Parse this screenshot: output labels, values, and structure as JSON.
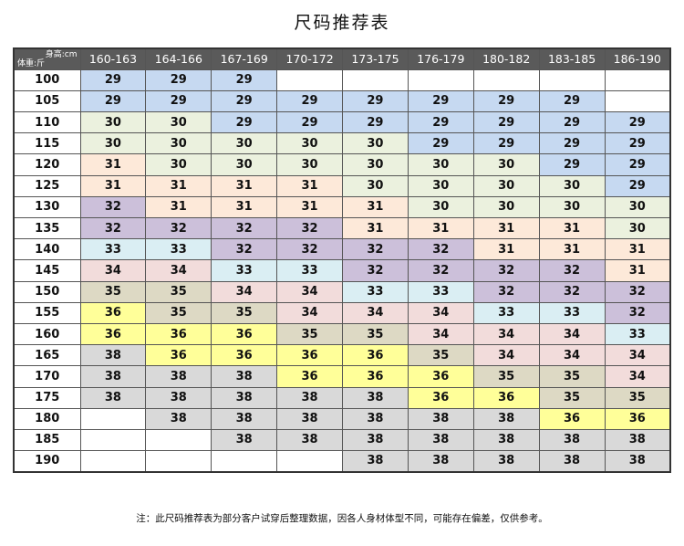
{
  "title": "尺码推荐表",
  "corner": {
    "height_label": "身高:cm",
    "weight_label": "体重:斤"
  },
  "columns": [
    "160-163",
    "164-166",
    "167-169",
    "170-172",
    "173-175",
    "176-179",
    "180-182",
    "183-185",
    "186-190"
  ],
  "colors": {
    "29": "#c6d9f1",
    "30": "#ebf1de",
    "31": "#fde9d9",
    "32": "#ccc0da",
    "33": "#daeef3",
    "34": "#f2dcdb",
    "35": "#ddd9c4",
    "36": "#ffff99",
    "38": "#d9d9d9"
  },
  "rows": [
    {
      "weight": "100",
      "cells": [
        "29",
        "29",
        "29",
        "",
        "",
        "",
        "",
        "",
        ""
      ]
    },
    {
      "weight": "105",
      "cells": [
        "29",
        "29",
        "29",
        "29",
        "29",
        "29",
        "29",
        "29",
        ""
      ]
    },
    {
      "weight": "110",
      "cells": [
        "30",
        "30",
        "29",
        "29",
        "29",
        "29",
        "29",
        "29",
        "29"
      ]
    },
    {
      "weight": "115",
      "cells": [
        "30",
        "30",
        "30",
        "30",
        "30",
        "29",
        "29",
        "29",
        "29"
      ]
    },
    {
      "weight": "120",
      "cells": [
        "31",
        "30",
        "30",
        "30",
        "30",
        "30",
        "30",
        "29",
        "29"
      ]
    },
    {
      "weight": "125",
      "cells": [
        "31",
        "31",
        "31",
        "31",
        "30",
        "30",
        "30",
        "30",
        "29"
      ]
    },
    {
      "weight": "130",
      "cells": [
        "32",
        "31",
        "31",
        "31",
        "31",
        "30",
        "30",
        "30",
        "30"
      ]
    },
    {
      "weight": "135",
      "cells": [
        "32",
        "32",
        "32",
        "32",
        "31",
        "31",
        "31",
        "31",
        "30"
      ]
    },
    {
      "weight": "140",
      "cells": [
        "33",
        "33",
        "32",
        "32",
        "32",
        "32",
        "31",
        "31",
        "31"
      ]
    },
    {
      "weight": "145",
      "cells": [
        "34",
        "34",
        "33",
        "33",
        "32",
        "32",
        "32",
        "32",
        "31"
      ]
    },
    {
      "weight": "150",
      "cells": [
        "35",
        "35",
        "34",
        "34",
        "33",
        "33",
        "32",
        "32",
        "32"
      ]
    },
    {
      "weight": "155",
      "cells": [
        "36",
        "35",
        "35",
        "34",
        "34",
        "34",
        "33",
        "33",
        "32"
      ]
    },
    {
      "weight": "160",
      "cells": [
        "36",
        "36",
        "36",
        "35",
        "35",
        "34",
        "34",
        "34",
        "33"
      ]
    },
    {
      "weight": "165",
      "cells": [
        "38",
        "36",
        "36",
        "36",
        "36",
        "35",
        "34",
        "34",
        "34"
      ]
    },
    {
      "weight": "170",
      "cells": [
        "38",
        "38",
        "38",
        "36",
        "36",
        "36",
        "35",
        "35",
        "34"
      ]
    },
    {
      "weight": "175",
      "cells": [
        "38",
        "38",
        "38",
        "38",
        "38",
        "36",
        "36",
        "35",
        "35"
      ]
    },
    {
      "weight": "180",
      "cells": [
        "",
        "38",
        "38",
        "38",
        "38",
        "38",
        "38",
        "36",
        "36"
      ]
    },
    {
      "weight": "185",
      "cells": [
        "",
        "",
        "38",
        "38",
        "38",
        "38",
        "38",
        "38",
        "38"
      ]
    },
    {
      "weight": "190",
      "cells": [
        "",
        "",
        "",
        "",
        "38",
        "38",
        "38",
        "38",
        "38"
      ]
    }
  ],
  "footnote": "注：此尺码推荐表为部分客户试穿后整理数据，因各人身材体型不同，可能存在偏差，仅供参考。"
}
